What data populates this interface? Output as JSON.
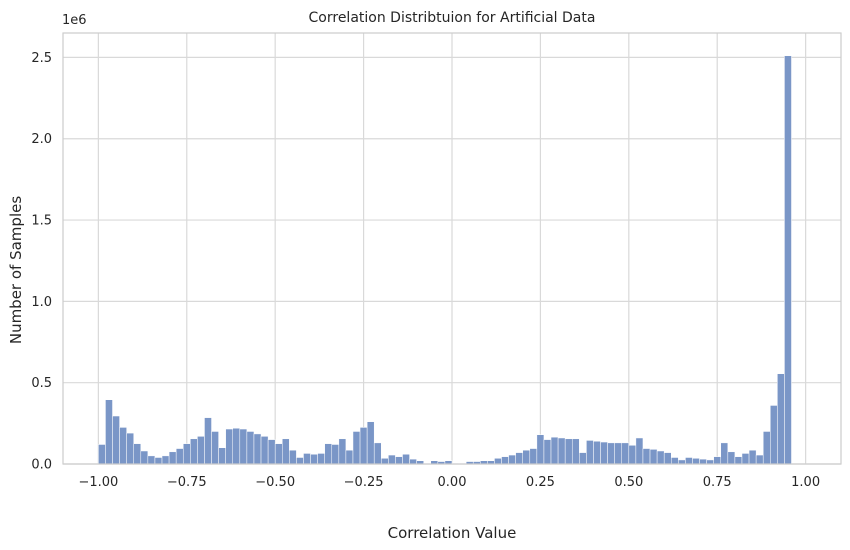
{
  "chart_data": {
    "type": "bar",
    "title": "Correlation Distribtuion for Artificial Data",
    "xlabel": "Correlation Value",
    "ylabel": "Number of Samples",
    "y_offset_label": "1e6",
    "xlim": [
      -1.1,
      1.1
    ],
    "ylim": [
      0,
      2.65
    ],
    "x_ticks": [
      -1.0,
      -0.75,
      -0.5,
      -0.25,
      0.0,
      0.25,
      0.5,
      0.75,
      1.0
    ],
    "x_tick_labels": [
      "−1.00",
      "−0.75",
      "−0.50",
      "−0.25",
      "0.00",
      "0.25",
      "0.50",
      "0.75",
      "1.00"
    ],
    "y_ticks": [
      0,
      0.5,
      1.0,
      1.5,
      2.0,
      2.5
    ],
    "y_tick_labels": [
      "0.0",
      "0.5",
      "1.0",
      "1.5",
      "2.0",
      "2.5"
    ],
    "grid": true,
    "bar_color": "#7a96c7",
    "bin_start": -1.0,
    "bin_width": 0.02,
    "values": [
      0.12,
      0.395,
      0.295,
      0.225,
      0.19,
      0.125,
      0.08,
      0.05,
      0.04,
      0.05,
      0.075,
      0.095,
      0.125,
      0.155,
      0.17,
      0.285,
      0.2,
      0.1,
      0.215,
      0.22,
      0.215,
      0.2,
      0.185,
      0.17,
      0.15,
      0.125,
      0.155,
      0.085,
      0.04,
      0.065,
      0.06,
      0.065,
      0.125,
      0.12,
      0.155,
      0.085,
      0.2,
      0.225,
      0.26,
      0.13,
      0.035,
      0.055,
      0.045,
      0.06,
      0.03,
      0.02,
      0.005,
      0.02,
      0.015,
      0.02,
      0.005,
      0.005,
      0.015,
      0.015,
      0.02,
      0.02,
      0.035,
      0.045,
      0.055,
      0.07,
      0.085,
      0.095,
      0.18,
      0.15,
      0.165,
      0.16,
      0.155,
      0.155,
      0.07,
      0.145,
      0.14,
      0.135,
      0.13,
      0.13,
      0.13,
      0.115,
      0.16,
      0.095,
      0.09,
      0.08,
      0.07,
      0.04,
      0.025,
      0.04,
      0.035,
      0.03,
      0.025,
      0.045,
      0.13,
      0.075,
      0.045,
      0.065,
      0.085,
      0.055,
      0.2,
      0.36,
      0.555,
      2.51
    ]
  }
}
